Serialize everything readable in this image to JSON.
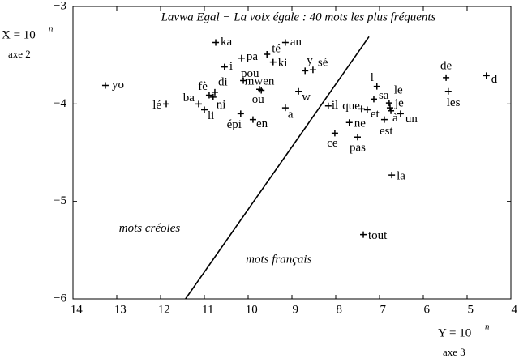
{
  "chart_data": {
    "type": "scatter",
    "title": "Lavwa Egal − La voix égale : 40 mots les plus fréquents",
    "x_label": "Y = 10",
    "x_label_exponent": "n",
    "x_axis_name": "axe 3",
    "y_label": "X = 10",
    "y_label_exponent": "n",
    "y_axis_name": "axe 2",
    "labels": [
      "yo",
      "lé",
      "ba",
      "fè",
      "di",
      "ni",
      "li",
      "ka",
      "i",
      "pa",
      "té",
      "an",
      "ki",
      "sé",
      "y",
      "pou",
      "mwen",
      "ou",
      "w",
      "a",
      "épi",
      "en",
      "il",
      "ce",
      "l",
      "sa",
      "que",
      "et",
      "ne",
      "le",
      "je",
      "à",
      "un",
      "est",
      "pas",
      "de",
      "les",
      "d",
      "la",
      "tout"
    ],
    "x": [
      -13.26,
      -11.87,
      -11.13,
      -10.89,
      -10.76,
      -10.8,
      -11.0,
      -10.74,
      -10.54,
      -10.15,
      -9.57,
      -9.15,
      -9.43,
      -8.52,
      -8.7,
      -10.11,
      -9.74,
      -9.7,
      -8.85,
      -9.15,
      -10.17,
      -9.89,
      -8.17,
      -8.02,
      -7.06,
      -7.13,
      -7.41,
      -7.28,
      -7.69,
      -6.78,
      -6.76,
      -6.74,
      -6.52,
      -6.89,
      -7.5,
      -5.48,
      -5.43,
      -4.56,
      -6.72,
      -7.37
    ],
    "values": [
      -3.81,
      -4.0,
      -4.0,
      -3.91,
      -3.88,
      -3.93,
      -4.06,
      -3.37,
      -3.62,
      -3.53,
      -3.49,
      -3.37,
      -3.57,
      -3.65,
      -3.66,
      -3.76,
      -3.85,
      -3.86,
      -3.87,
      -4.04,
      -4.1,
      -4.16,
      -4.02,
      -4.3,
      -3.82,
      -3.95,
      -4.05,
      -4.06,
      -4.19,
      -3.99,
      -4.04,
      -4.07,
      -4.1,
      -4.16,
      -4.34,
      -3.73,
      -3.87,
      -3.71,
      -4.73,
      -5.34
    ],
    "color": "#000000",
    "separator": {
      "x": [
        -11.43,
        -7.24
      ],
      "y": [
        -6,
        -3.31
      ]
    },
    "annotations": [
      {
        "text": "mots créoles",
        "x": -12.25,
        "y": -5.28
      },
      {
        "text": "mots français",
        "x": -9.3,
        "y": -5.6
      }
    ],
    "xlim": [
      -14,
      -4
    ],
    "ylim": [
      -6,
      -3
    ],
    "xticks": [
      {
        "value": -14,
        "label": "−14"
      },
      {
        "value": -13,
        "label": "−13"
      },
      {
        "value": -12,
        "label": "−12"
      },
      {
        "value": -11,
        "label": "−11"
      },
      {
        "value": -10,
        "label": "−10"
      },
      {
        "value": -9,
        "label": "−9"
      },
      {
        "value": -8,
        "label": "−8"
      },
      {
        "value": -7,
        "label": "−7"
      },
      {
        "value": -6,
        "label": "−6"
      },
      {
        "value": -5,
        "label": "−5"
      },
      {
        "value": -4,
        "label": "−4"
      }
    ],
    "yticks": [
      {
        "value": -6,
        "label": "−6"
      },
      {
        "value": -5,
        "label": "−5"
      },
      {
        "value": -4,
        "label": "−4"
      },
      {
        "value": -3,
        "label": "−3"
      }
    ]
  }
}
